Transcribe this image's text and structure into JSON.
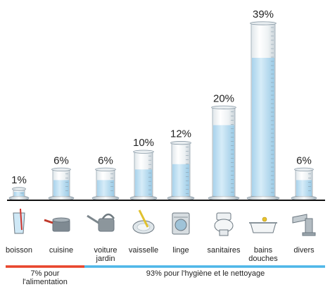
{
  "chart_data": {
    "type": "bar",
    "title": "",
    "xlabel": "",
    "ylabel": "",
    "ylim": [
      0,
      40
    ],
    "unit_suffix": "%",
    "categories": [
      {
        "label": [
          "boisson"
        ],
        "value": 1,
        "icon": "glass-icon"
      },
      {
        "label": [
          "cuisine"
        ],
        "value": 6,
        "icon": "cooking-pot-icon"
      },
      {
        "label": [
          "voiture",
          "jardin"
        ],
        "value": 6,
        "icon": "watering-can-icon"
      },
      {
        "label": [
          "vaisselle"
        ],
        "value": 10,
        "icon": "dish-sponge-icon"
      },
      {
        "label": [
          "linge"
        ],
        "value": 12,
        "icon": "washing-machine-icon"
      },
      {
        "label": [
          "sanitaires"
        ],
        "value": 20,
        "icon": "toilet-icon"
      },
      {
        "label": [
          "bains",
          "douches"
        ],
        "value": 39,
        "icon": "bathtub-icon"
      },
      {
        "label": [
          "divers"
        ],
        "value": 6,
        "icon": "faucet-icon"
      }
    ],
    "groups": [
      {
        "label": [
          "7% pour",
          "l'alimentation"
        ],
        "color": "#e8442a",
        "span": [
          0,
          1
        ]
      },
      {
        "label": [
          "93% pour l'hygiène et le nettoyage"
        ],
        "color": "#4db6e8",
        "span": [
          2,
          7
        ]
      }
    ],
    "colors": {
      "water": "#bfe0f2",
      "cylinder_edge": "#8a9aa6",
      "baseline": "#111111"
    }
  }
}
